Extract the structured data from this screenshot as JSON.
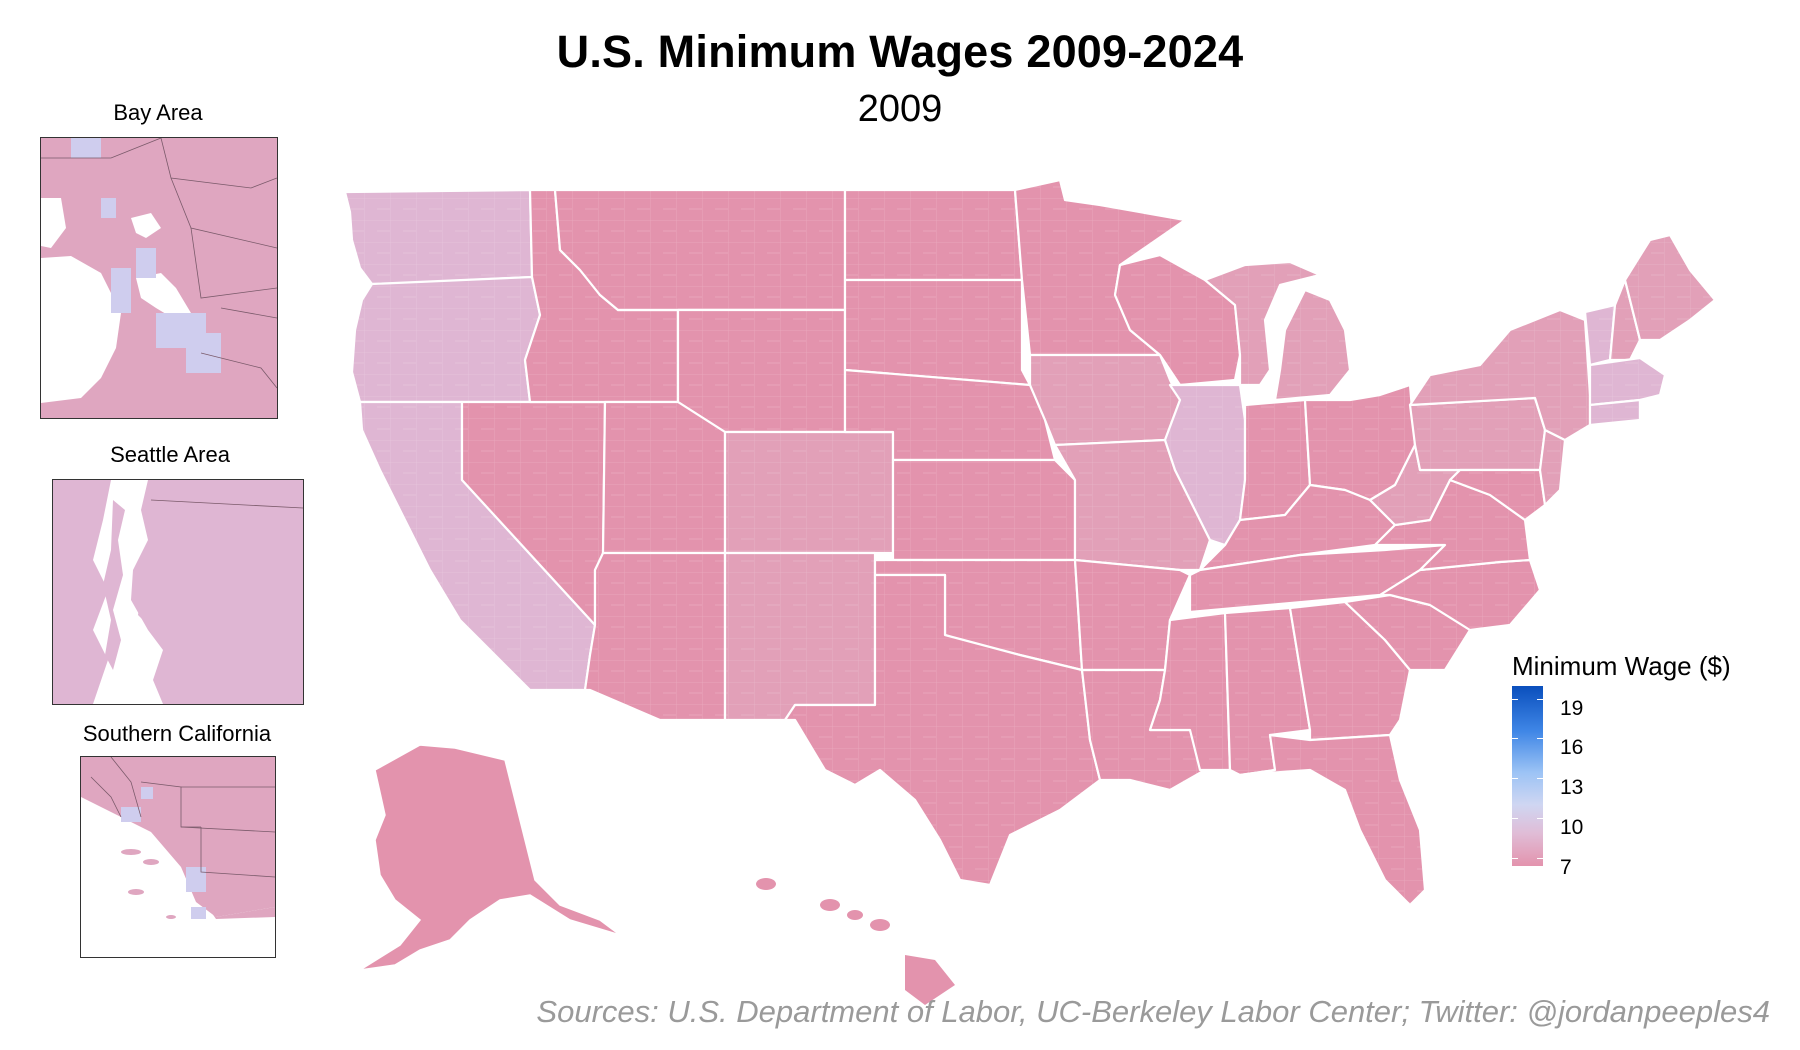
{
  "title": "U.S. Minimum Wages 2009-2024",
  "subtitle": "2009",
  "insets": [
    {
      "title": "Bay Area"
    },
    {
      "title": "Seattle Area"
    },
    {
      "title": "Southern California"
    }
  ],
  "legend": {
    "title": "Minimum Wage ($)",
    "ticks": [
      "19",
      "16",
      "13",
      "10",
      "7"
    ]
  },
  "colors": {
    "wage_7": "#e393ad",
    "wage_8": "#dfa6c0",
    "wage_10": "#d8c6e2",
    "wage_13": "#c0d4f6",
    "wage_19": "#0a4fbd",
    "borders": "#ffffff"
  },
  "source": "Sources: U.S. Department of Labor, UC-Berkeley Labor Center; Twitter: @jordanpeeples4"
}
